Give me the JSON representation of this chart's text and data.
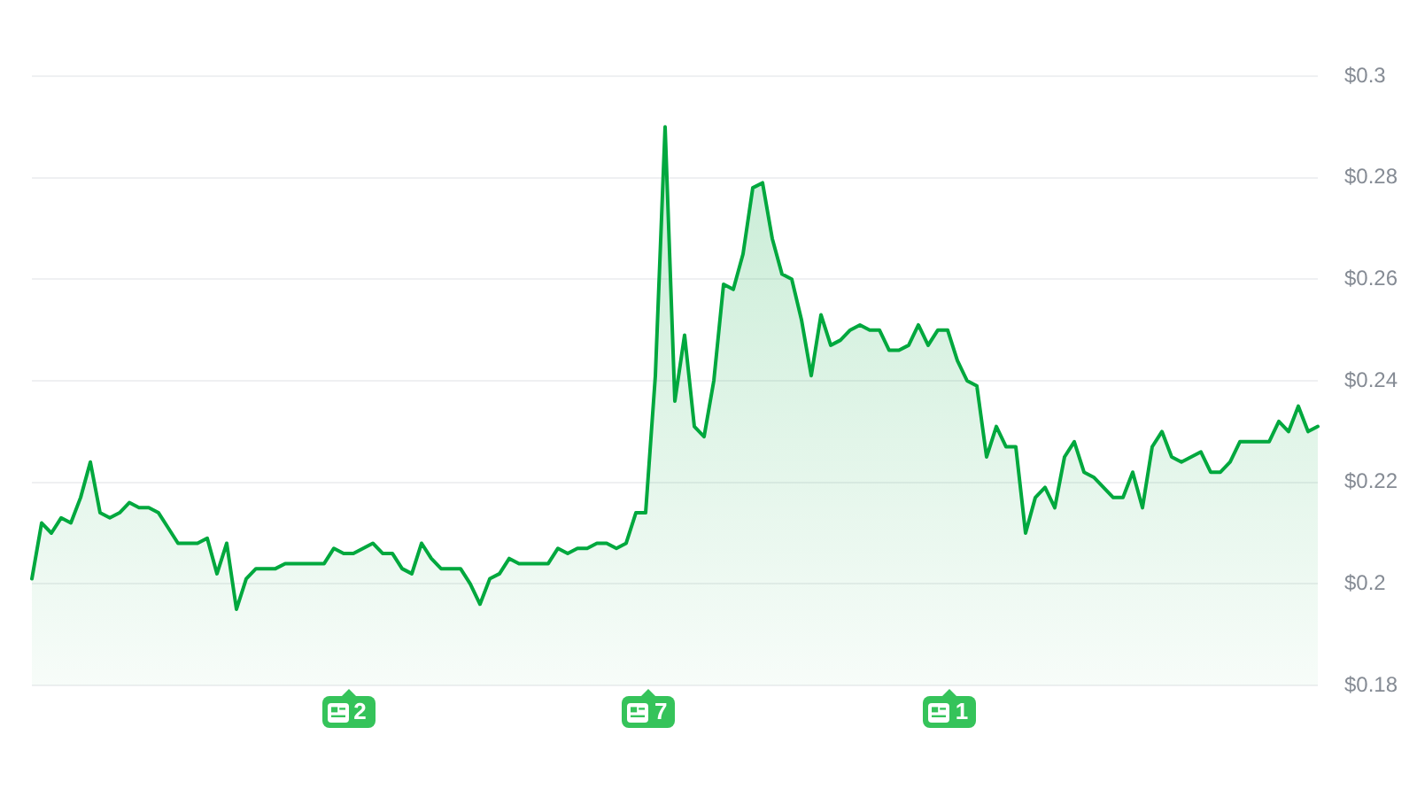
{
  "chart_data": {
    "type": "area",
    "categories": [
      null,
      null,
      null,
      null,
      null,
      null,
      null,
      null,
      null,
      null,
      null,
      null,
      null,
      null,
      null,
      null,
      null,
      null,
      null,
      null,
      null,
      null,
      null,
      null,
      null,
      null,
      null,
      null,
      null,
      null,
      null,
      null,
      null,
      null,
      null,
      null,
      null,
      null,
      null,
      null,
      null,
      null,
      null,
      null,
      null,
      null,
      null,
      null,
      null,
      null,
      null,
      null,
      null,
      null,
      null,
      null,
      null,
      null,
      null,
      null,
      null,
      null,
      null,
      null,
      null,
      null,
      null,
      null,
      null,
      null,
      null,
      null,
      null,
      null,
      null,
      null,
      null,
      null,
      null,
      null,
      null,
      null,
      null,
      null,
      null,
      null,
      null,
      null,
      null,
      null,
      null,
      null,
      null,
      null,
      null,
      null,
      null,
      null,
      null,
      null,
      null,
      null,
      null,
      null,
      null,
      null,
      null,
      null,
      null,
      null,
      null,
      null,
      null,
      null,
      null,
      null,
      null,
      null,
      null,
      null,
      null,
      null,
      null,
      null,
      null,
      null,
      null,
      null,
      null,
      null,
      null,
      null,
      null
    ],
    "values": [
      0.201,
      0.212,
      0.21,
      0.213,
      0.212,
      0.217,
      0.224,
      0.214,
      0.213,
      0.214,
      0.216,
      0.215,
      0.215,
      0.214,
      0.211,
      0.208,
      0.208,
      0.208,
      0.209,
      0.202,
      0.208,
      0.195,
      0.201,
      0.203,
      0.203,
      0.203,
      0.204,
      0.204,
      0.204,
      0.204,
      0.204,
      0.207,
      0.206,
      0.206,
      0.207,
      0.208,
      0.206,
      0.206,
      0.203,
      0.202,
      0.208,
      0.205,
      0.203,
      0.203,
      0.203,
      0.2,
      0.196,
      0.201,
      0.202,
      0.205,
      0.204,
      0.204,
      0.204,
      0.204,
      0.207,
      0.206,
      0.207,
      0.207,
      0.208,
      0.208,
      0.207,
      0.208,
      0.214,
      0.214,
      0.241,
      0.29,
      0.236,
      0.249,
      0.231,
      0.229,
      0.24,
      0.259,
      0.258,
      0.265,
      0.278,
      0.279,
      0.268,
      0.261,
      0.26,
      0.252,
      0.241,
      0.253,
      0.247,
      0.248,
      0.25,
      0.251,
      0.25,
      0.25,
      0.246,
      0.246,
      0.247,
      0.251,
      0.247,
      0.25,
      0.25,
      0.244,
      0.24,
      0.239,
      0.225,
      0.231,
      0.227,
      0.227,
      0.21,
      0.217,
      0.219,
      0.215,
      0.225,
      0.228,
      0.222,
      0.221,
      0.219,
      0.217,
      0.217,
      0.222,
      0.215,
      0.227,
      0.23,
      0.225,
      0.224,
      0.225,
      0.226,
      0.222,
      0.222,
      0.224,
      0.228,
      0.228,
      0.228,
      0.228,
      0.232,
      0.23,
      0.235,
      0.23,
      0.231
    ],
    "color": "#00a83e",
    "ylim": [
      0.18,
      0.3
    ],
    "yticks": [
      {
        "value": 0.18,
        "label": "$0.18"
      },
      {
        "value": 0.2,
        "label": "$0.2"
      },
      {
        "value": 0.22,
        "label": "$0.22"
      },
      {
        "value": 0.24,
        "label": "$0.24"
      },
      {
        "value": 0.26,
        "label": "$0.26"
      },
      {
        "value": 0.28,
        "label": "$0.28"
      },
      {
        "value": 0.3,
        "label": "$0.3"
      }
    ],
    "grid": "y",
    "legend": false,
    "marker": "none",
    "tick_labels": "y",
    "annotations": [
      "2",
      "7",
      "1"
    ]
  }
}
